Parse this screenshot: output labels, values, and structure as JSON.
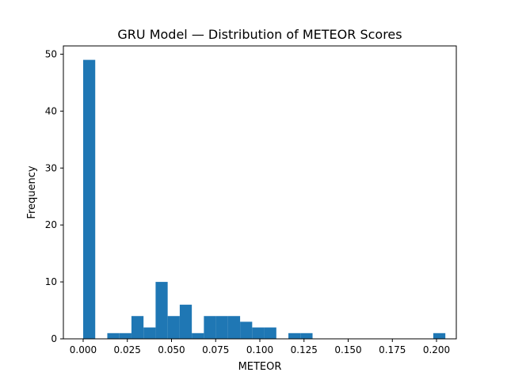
{
  "chart_data": {
    "type": "bar",
    "title": "GRU Model — Distribution of METEOR Scores",
    "xlabel": "METEOR",
    "ylabel": "Frequency",
    "xlim": [
      -0.0112,
      0.2112
    ],
    "ylim": [
      0,
      51.45
    ],
    "grid": false,
    "legend": "none",
    "bar_color": "#1f77b4",
    "bin_edges": [
      0.0,
      0.006833,
      0.013667,
      0.0205,
      0.027333,
      0.034167,
      0.041,
      0.047833,
      0.054667,
      0.0615,
      0.068333,
      0.075167,
      0.082,
      0.088833,
      0.095667,
      0.1025,
      0.109333,
      0.116167,
      0.123,
      0.129833,
      0.136667,
      0.1435,
      0.150333,
      0.157167,
      0.164,
      0.170833,
      0.177667,
      0.1845,
      0.191333,
      0.198167,
      0.205
    ],
    "values": [
      49,
      0,
      1,
      1,
      4,
      2,
      10,
      4,
      6,
      1,
      4,
      4,
      4,
      3,
      2,
      2,
      0,
      1,
      1,
      0,
      0,
      0,
      0,
      0,
      0,
      0,
      0,
      0,
      0,
      1
    ],
    "x_ticks": [
      0.0,
      0.025,
      0.05,
      0.075,
      0.1,
      0.125,
      0.15,
      0.175,
      0.2
    ],
    "x_tick_labels": [
      "0.000",
      "0.025",
      "0.050",
      "0.075",
      "0.100",
      "0.125",
      "0.150",
      "0.175",
      "0.200"
    ],
    "y_ticks": [
      0,
      10,
      20,
      30,
      40,
      50
    ],
    "y_tick_labels": [
      "0",
      "10",
      "20",
      "30",
      "40",
      "50"
    ]
  }
}
